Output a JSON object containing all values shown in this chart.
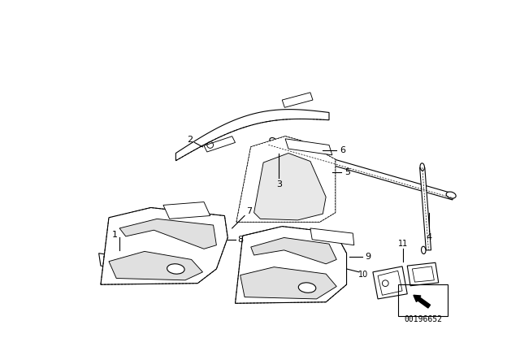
{
  "background_color": "#ffffff",
  "part_number": "00196652",
  "line_color": "#000000",
  "line_width": 0.8,
  "label_fontsize": 8,
  "partnum_fontsize": 7
}
